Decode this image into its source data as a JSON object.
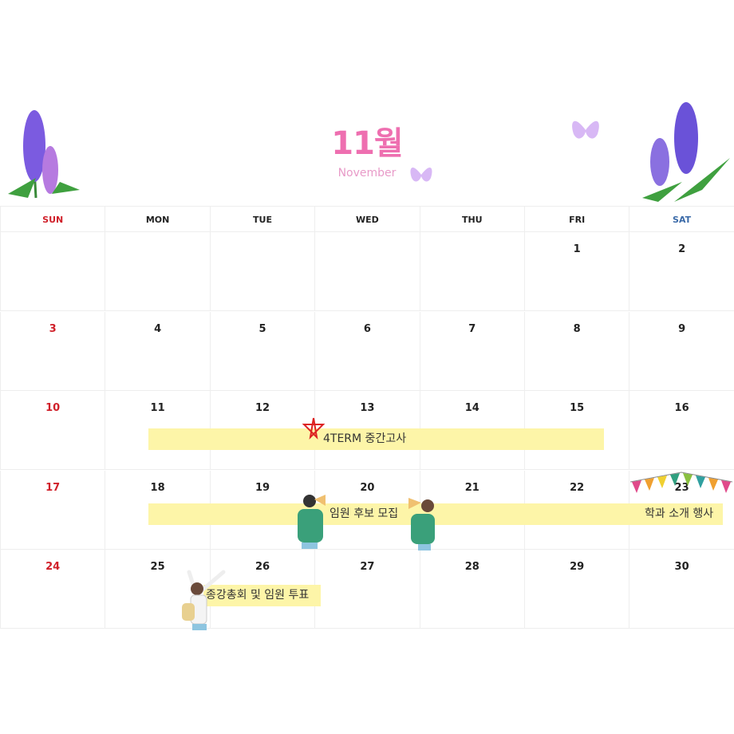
{
  "header": {
    "month_title": "11월",
    "month_subtitle": "November"
  },
  "colors": {
    "sunday": "#d0202a",
    "saturday": "#3a6aa8",
    "weekday": "#222222",
    "event_bar": "#fdf5a8",
    "title": "#ee6fb0"
  },
  "weekdays": [
    "SUN",
    "MON",
    "TUE",
    "WED",
    "THU",
    "FRI",
    "SAT"
  ],
  "weeks": [
    [
      "",
      "",
      "",
      "",
      "",
      "1",
      "2"
    ],
    [
      "3",
      "4",
      "5",
      "6",
      "7",
      "8",
      "9"
    ],
    [
      "10",
      "11",
      "12",
      "13",
      "14",
      "15",
      "16"
    ],
    [
      "17",
      "18",
      "19",
      "20",
      "21",
      "22",
      "23"
    ],
    [
      "24",
      "25",
      "26",
      "27",
      "28",
      "29",
      "30"
    ]
  ],
  "events": [
    {
      "label": "4TERM 중간고사",
      "icon": "star-icon"
    },
    {
      "label": "임원 후보 모집",
      "icon": "megaphone-people-illustration"
    },
    {
      "label": "학과 소개 행사",
      "icon": "bunting-flags-icon"
    },
    {
      "label": "종강총회 및 임원 투표",
      "icon": "cheering-student-illustration"
    }
  ]
}
